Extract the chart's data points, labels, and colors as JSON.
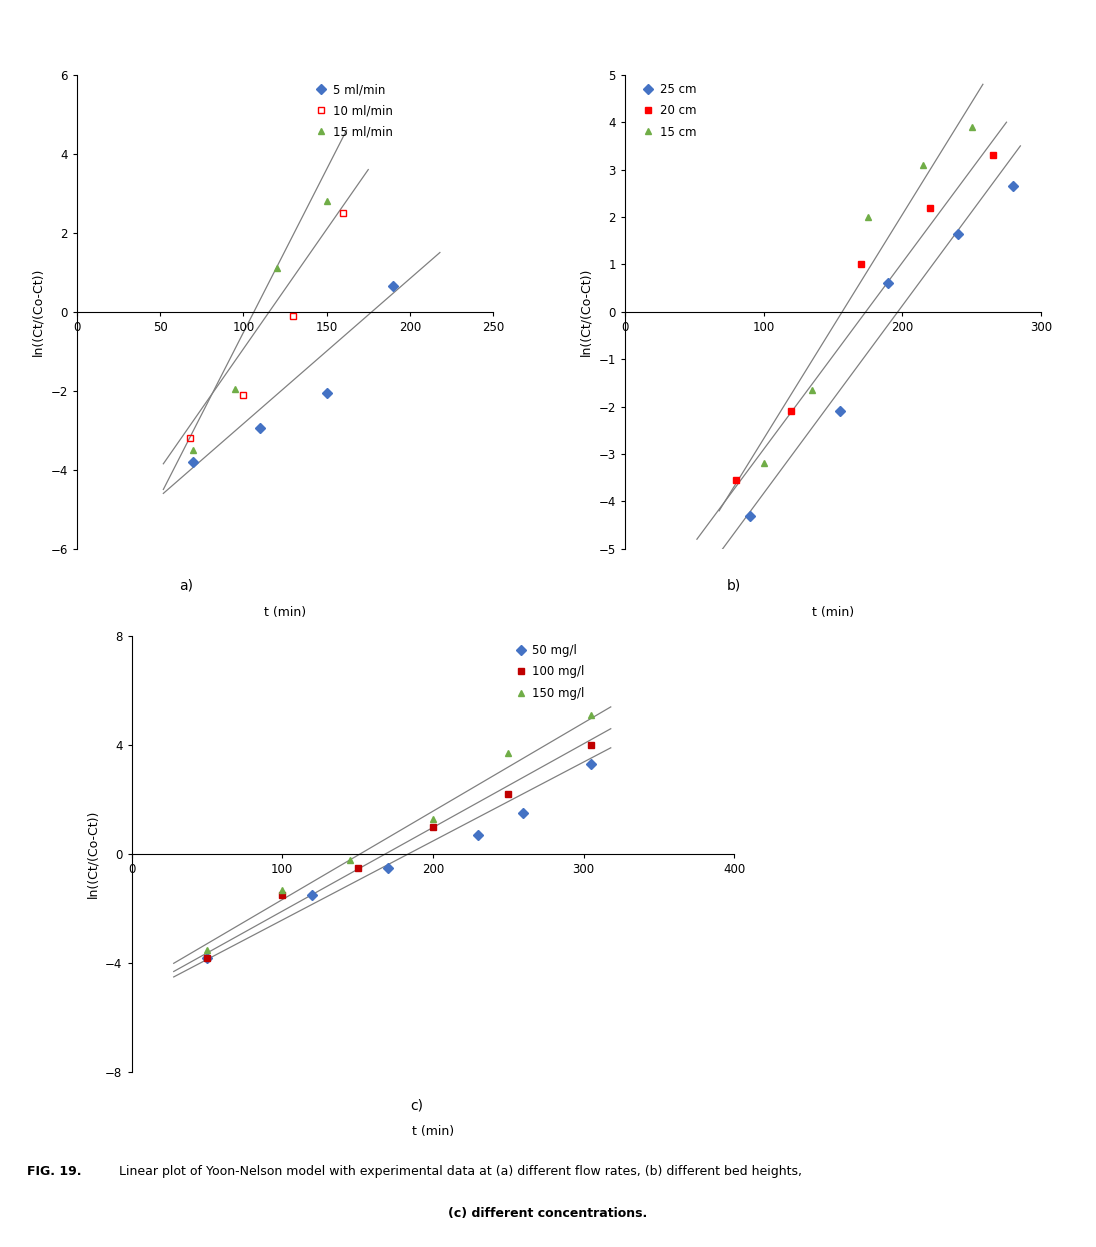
{
  "bg_color": "#ffffff",
  "plots": [
    {
      "key": "a",
      "ylabel": "ln((Ct/(Co-Ct))",
      "xlabel": "t (min)",
      "xlim": [
        0,
        250
      ],
      "ylim": [
        -6,
        6
      ],
      "xticks": [
        0,
        50,
        100,
        150,
        200,
        250
      ],
      "yticks": [
        -6,
        -4,
        -2,
        0,
        2,
        4,
        6
      ],
      "series": [
        {
          "label": "5 ml/min",
          "color": "#4472C4",
          "marker": "D",
          "mfc": "#4472C4",
          "mec": "#4472C4",
          "x": [
            70,
            110,
            150,
            190
          ],
          "y": [
            -3.8,
            -2.95,
            -2.05,
            0.65
          ]
        },
        {
          "label": "10 ml/min",
          "color": "#FF0000",
          "marker": "s",
          "mfc": "none",
          "mec": "#FF0000",
          "x": [
            68,
            100,
            130,
            160
          ],
          "y": [
            -3.2,
            -2.1,
            -0.1,
            2.5
          ]
        },
        {
          "label": "15 ml/min",
          "color": "#70AD47",
          "marker": "^",
          "mfc": "#70AD47",
          "mec": "#70AD47",
          "x": [
            70,
            95,
            120,
            150
          ],
          "y": [
            -3.5,
            -1.95,
            1.1,
            2.8
          ]
        }
      ],
      "fit_lines": [
        {
          "x": [
            52,
            218
          ],
          "y": [
            -4.6,
            1.5
          ]
        },
        {
          "x": [
            52,
            175
          ],
          "y": [
            -3.85,
            3.6
          ]
        },
        {
          "x": [
            52,
            162
          ],
          "y": [
            -4.5,
            4.6
          ]
        }
      ]
    },
    {
      "key": "b",
      "ylabel": "ln((Ct/(Co-Ct))",
      "xlabel": "t (min)",
      "xlim": [
        0,
        300
      ],
      "ylim": [
        -5,
        5
      ],
      "xticks": [
        0,
        100,
        200,
        300
      ],
      "yticks": [
        -5,
        -4,
        -3,
        -2,
        -1,
        0,
        1,
        2,
        3,
        4,
        5
      ],
      "series": [
        {
          "label": "25 cm",
          "color": "#4472C4",
          "marker": "D",
          "mfc": "#4472C4",
          "mec": "#4472C4",
          "x": [
            90,
            155,
            190,
            240,
            280
          ],
          "y": [
            -4.3,
            -2.1,
            0.6,
            1.65,
            2.65
          ]
        },
        {
          "label": "20 cm",
          "color": "#FF0000",
          "marker": "s",
          "mfc": "#FF0000",
          "mec": "#FF0000",
          "x": [
            80,
            120,
            170,
            220,
            265
          ],
          "y": [
            -3.55,
            -2.1,
            1.0,
            2.2,
            3.3
          ]
        },
        {
          "label": "15 cm",
          "color": "#70AD47",
          "marker": "^",
          "mfc": "#70AD47",
          "mec": "#70AD47",
          "x": [
            100,
            135,
            175,
            215,
            250
          ],
          "y": [
            -3.2,
            -1.65,
            2.0,
            3.1,
            3.9
          ]
        }
      ],
      "fit_lines": [
        {
          "x": [
            58,
            285
          ],
          "y": [
            -5.5,
            3.5
          ]
        },
        {
          "x": [
            52,
            275
          ],
          "y": [
            -4.8,
            4.0
          ]
        },
        {
          "x": [
            68,
            258
          ],
          "y": [
            -4.2,
            4.8
          ]
        }
      ]
    },
    {
      "key": "c",
      "ylabel": "ln((Ct/(Co-Ct))",
      "xlabel": "t (min)",
      "xlim": [
        0,
        400
      ],
      "ylim": [
        -8,
        8
      ],
      "xticks": [
        0,
        100,
        200,
        300,
        400
      ],
      "yticks": [
        -8,
        -4,
        0,
        4,
        8
      ],
      "series": [
        {
          "label": "50 mg/l",
          "color": "#4472C4",
          "marker": "D",
          "mfc": "#4472C4",
          "mec": "#4472C4",
          "x": [
            50,
            120,
            170,
            230,
            260,
            305
          ],
          "y": [
            -3.8,
            -1.5,
            -0.5,
            0.7,
            1.5,
            3.3
          ]
        },
        {
          "label": "100 mg/l",
          "color": "#C00000",
          "marker": "s",
          "mfc": "#C00000",
          "mec": "#C00000",
          "x": [
            50,
            100,
            150,
            200,
            250,
            305
          ],
          "y": [
            -3.8,
            -1.5,
            -0.5,
            1.0,
            2.2,
            4.0
          ]
        },
        {
          "label": "150 mg/l",
          "color": "#70AD47",
          "marker": "^",
          "mfc": "#70AD47",
          "mec": "#70AD47",
          "x": [
            50,
            100,
            145,
            200,
            250,
            305
          ],
          "y": [
            -3.5,
            -1.3,
            -0.2,
            1.3,
            3.7,
            5.1
          ]
        }
      ],
      "fit_lines": [
        {
          "x": [
            28,
            318
          ],
          "y": [
            -4.5,
            3.9
          ]
        },
        {
          "x": [
            28,
            318
          ],
          "y": [
            -4.3,
            4.6
          ]
        },
        {
          "x": [
            28,
            318
          ],
          "y": [
            -4.0,
            5.4
          ]
        }
      ]
    }
  ],
  "caption_bold": "FIG. 19.",
  "caption_normal": " Linear plot of Yoon-Nelson model with experimental data at (a) different flow rates, (b) different bed heights,",
  "caption_line2": "(c) different concentrations."
}
